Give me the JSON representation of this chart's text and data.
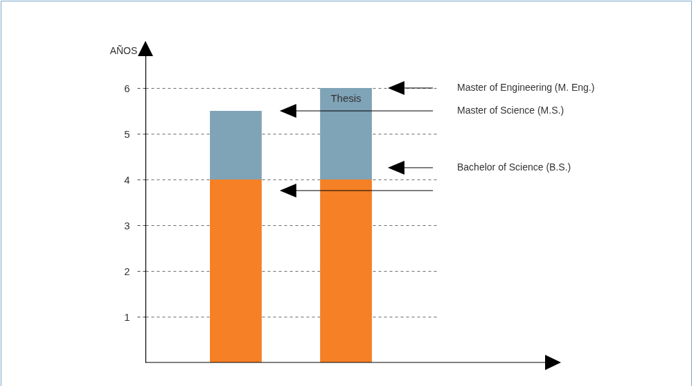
{
  "chart_data": {
    "type": "bar",
    "stacked": true,
    "ylabel": "AÑOS",
    "categories": [
      null,
      null
    ],
    "series": [
      {
        "color": "#f58025",
        "values": [
          4,
          4
        ]
      },
      {
        "color": "#7fa3b7",
        "values": [
          1.5,
          2
        ]
      }
    ],
    "ylim": [
      0,
      7
    ],
    "yticks": [
      1,
      2,
      3,
      4,
      5,
      6
    ],
    "grid": "y",
    "tick_labels": "y",
    "annotations": [
      "Thesis",
      "Master of Engineering (M. Eng.)",
      "Master of Science (M.S.)",
      "Bachelor of Science (B.S.)"
    ]
  }
}
